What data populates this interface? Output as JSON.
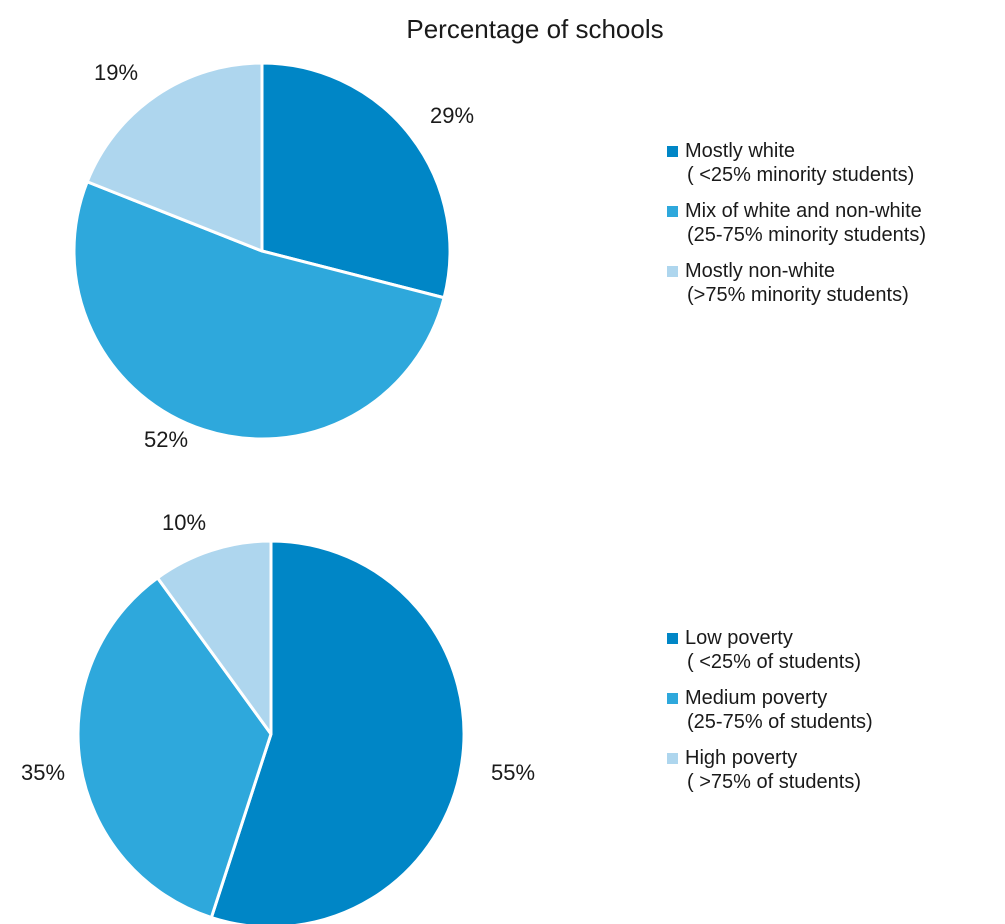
{
  "title": "Percentage of schools",
  "colors": {
    "dark": "#0086C6",
    "medium": "#2EA8DC",
    "light": "#AED6EE"
  },
  "chart_data": [
    {
      "type": "pie",
      "title": "Percentage of schools",
      "slices": [
        {
          "name": "Mostly white",
          "detail": "( <25% minority students)",
          "value": 29,
          "label": "29%",
          "color": "#0086C6"
        },
        {
          "name": "Mix of white and non-white",
          "detail": "(25-75% minority students)",
          "value": 52,
          "label": "52%",
          "color": "#2EA8DC"
        },
        {
          "name": "Mostly non-white",
          "detail": "(>75% minority students)",
          "value": 19,
          "label": "19%",
          "color": "#AED6EE"
        }
      ],
      "legend_position": "right"
    },
    {
      "type": "pie",
      "slices": [
        {
          "name": "Low poverty",
          "detail": "( <25% of students)",
          "value": 55,
          "label": "55%",
          "color": "#0086C6"
        },
        {
          "name": "Medium poverty",
          "detail": "(25-75% of students)",
          "value": 35,
          "label": "35%",
          "color": "#2EA8DC"
        },
        {
          "name": "High poverty",
          "detail": "( >75% of students)",
          "value": 10,
          "label": "10%",
          "color": "#AED6EE"
        }
      ],
      "legend_position": "right"
    }
  ]
}
